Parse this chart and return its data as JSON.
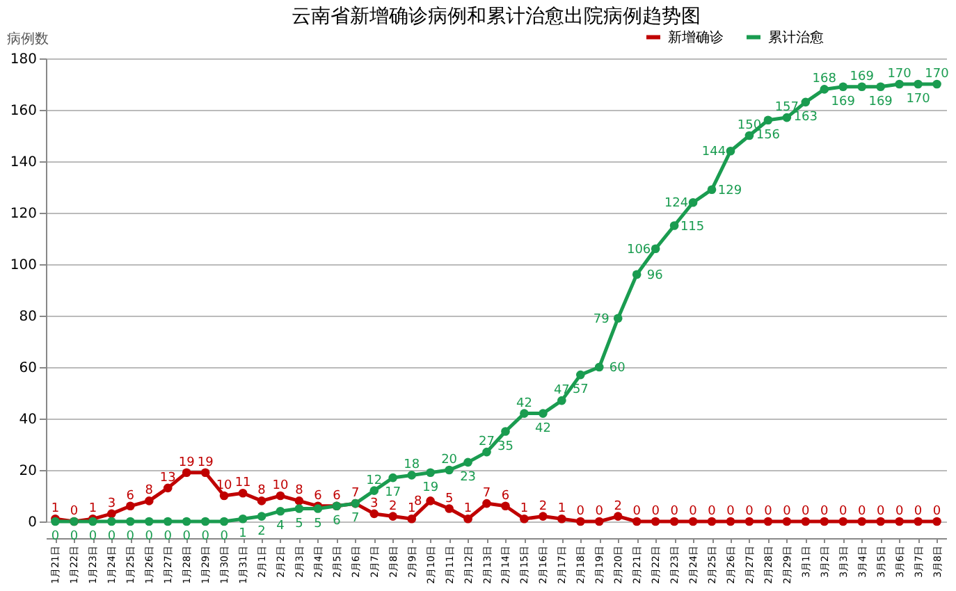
{
  "chart_data": {
    "type": "line",
    "title": "云南省新增确诊病例和累计治愈出院病例趋势图",
    "ylabel": "病例数",
    "categories": [
      "1月21日",
      "1月22日",
      "1月23日",
      "1月24日",
      "1月25日",
      "1月26日",
      "1月27日",
      "1月28日",
      "1月29日",
      "1月30日",
      "1月31日",
      "2月1日",
      "2月2日",
      "2月3日",
      "2月4日",
      "2月5日",
      "2月6日",
      "2月7日",
      "2月8日",
      "2月9日",
      "2月10日",
      "2月11日",
      "2月12日",
      "2月13日",
      "2月14日",
      "2月15日",
      "2月16日",
      "2月17日",
      "2月18日",
      "2月19日",
      "2月20日",
      "2月21日",
      "2月22日",
      "2月23日",
      "2月24日",
      "2月25日",
      "2月26日",
      "2月27日",
      "2月28日",
      "2月29日",
      "3月1日",
      "3月2日",
      "3月3日",
      "3月4日",
      "3月5日",
      "3月6日",
      "3月7日",
      "3月8日"
    ],
    "series": [
      {
        "name": "新增确诊",
        "color": "#c00000",
        "values": [
          1,
          0,
          1,
          3,
          6,
          8,
          13,
          19,
          19,
          10,
          11,
          8,
          10,
          8,
          6,
          6,
          7,
          3,
          2,
          1,
          8,
          5,
          1,
          7,
          6,
          1,
          2,
          1,
          0,
          0,
          2,
          0,
          0,
          0,
          0,
          0,
          0,
          0,
          0,
          0,
          0,
          0,
          0,
          0,
          0,
          0,
          0,
          0
        ]
      },
      {
        "name": "累计治愈",
        "color": "#1a9c50",
        "values": [
          0,
          0,
          0,
          0,
          0,
          0,
          0,
          0,
          0,
          0,
          1,
          2,
          4,
          5,
          5,
          6,
          7,
          12,
          17,
          18,
          19,
          20,
          23,
          27,
          35,
          42,
          42,
          47,
          57,
          60,
          79,
          96,
          106,
          115,
          124,
          129,
          144,
          150,
          156,
          157,
          163,
          168,
          169,
          169,
          169,
          170,
          170,
          170
        ]
      }
    ],
    "ylim": [
      0,
      180
    ],
    "yticks": [
      0,
      20,
      40,
      60,
      80,
      100,
      120,
      140,
      160,
      180
    ],
    "grid": "y",
    "legend": "top right",
    "marker": "circle",
    "line_style": "solid",
    "data_labels": true
  }
}
